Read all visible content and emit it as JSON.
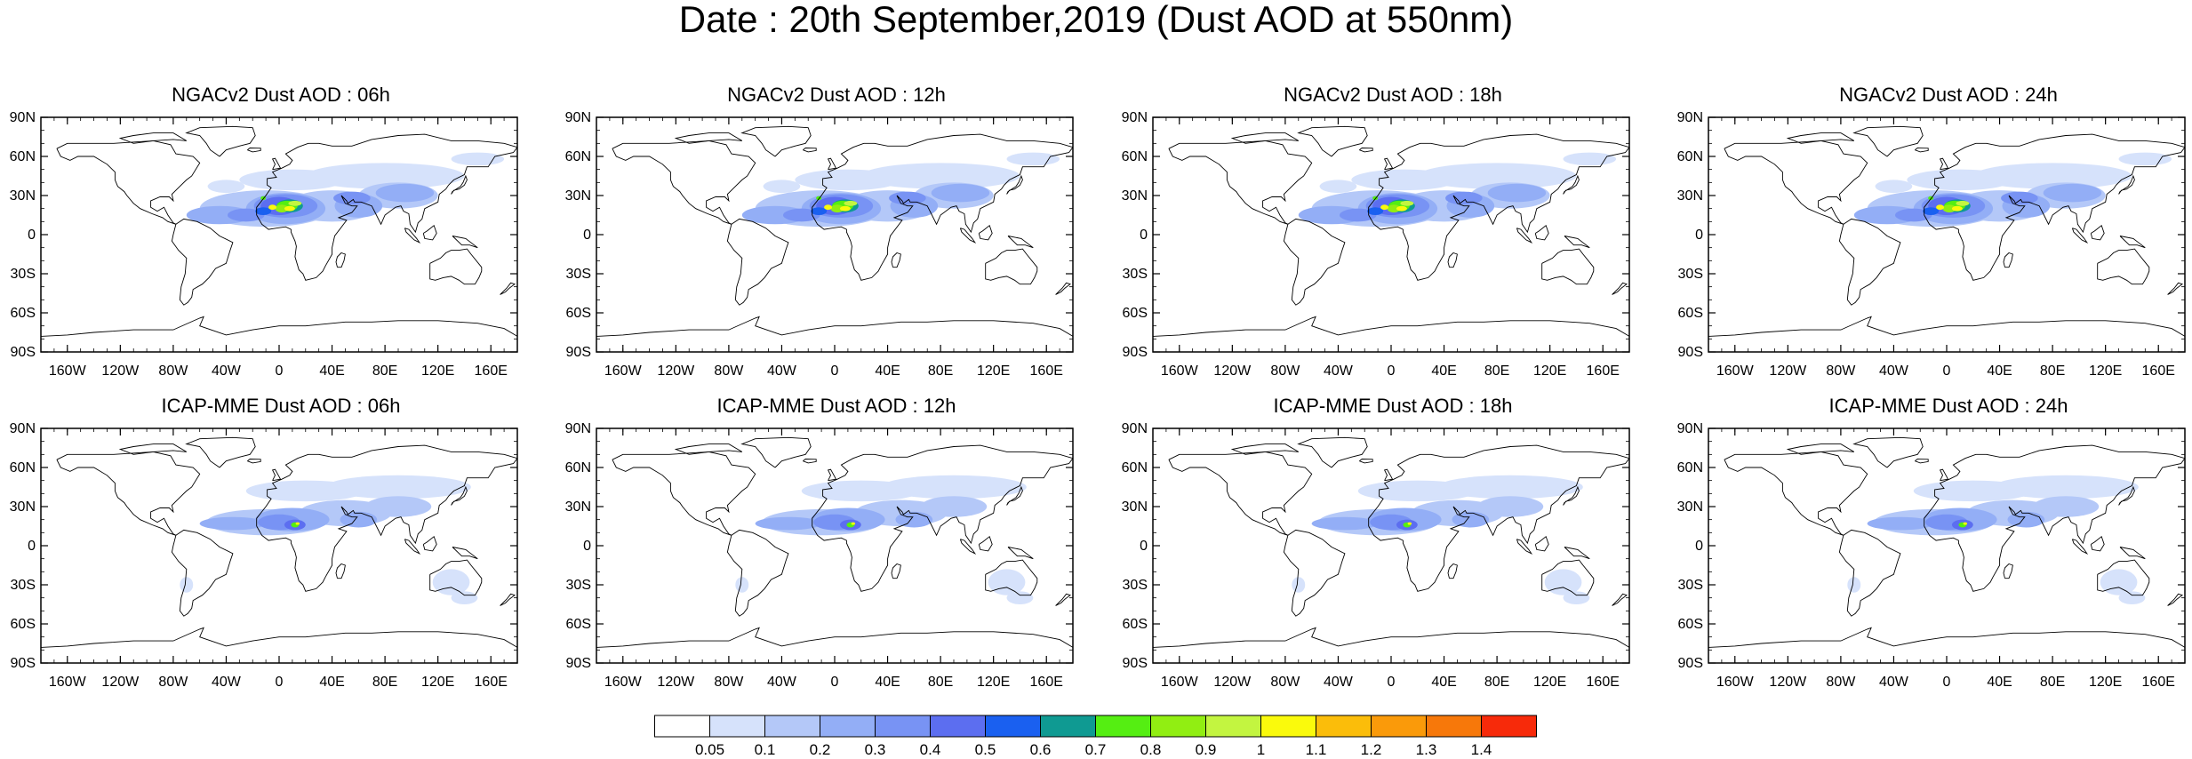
{
  "title": "Date : 20th September,2019 (Dust AOD at 550nm)",
  "panels": [
    {
      "title": "NGACv2 Dust AOD : 06h",
      "model": "NGACv2"
    },
    {
      "title": "NGACv2 Dust AOD : 12h",
      "model": "NGACv2"
    },
    {
      "title": "NGACv2 Dust AOD : 18h",
      "model": "NGACv2"
    },
    {
      "title": "NGACv2 Dust AOD : 24h",
      "model": "NGACv2"
    },
    {
      "title": "ICAP-MME Dust AOD : 06h",
      "model": "ICAP-MME"
    },
    {
      "title": "ICAP-MME Dust AOD : 12h",
      "model": "ICAP-MME"
    },
    {
      "title": "ICAP-MME Dust AOD : 18h",
      "model": "ICAP-MME"
    },
    {
      "title": "ICAP-MME Dust AOD : 24h",
      "model": "ICAP-MME"
    }
  ],
  "lat_ticks": [
    "90N",
    "60N",
    "30N",
    "0",
    "30S",
    "60S",
    "90S"
  ],
  "lon_ticks": [
    "160W",
    "120W",
    "80W",
    "40W",
    "0",
    "40E",
    "80E",
    "120E",
    "160E"
  ],
  "colorbar": {
    "labels": [
      "0.05",
      "0.1",
      "0.2",
      "0.3",
      "0.4",
      "0.5",
      "0.6",
      "0.7",
      "0.8",
      "0.9",
      "1",
      "1.1",
      "1.2",
      "1.3",
      "1.4"
    ],
    "colors": [
      "#ffffff",
      "#d6e2fb",
      "#b4c8f8",
      "#93aef6",
      "#7893f4",
      "#5c6ef0",
      "#1a60f0",
      "#0f9a92",
      "#55ee12",
      "#91ee12",
      "#c3f540",
      "#fafa0c",
      "#fbbd0a",
      "#fa9a0a",
      "#f7780a",
      "#f72a0a"
    ]
  }
}
